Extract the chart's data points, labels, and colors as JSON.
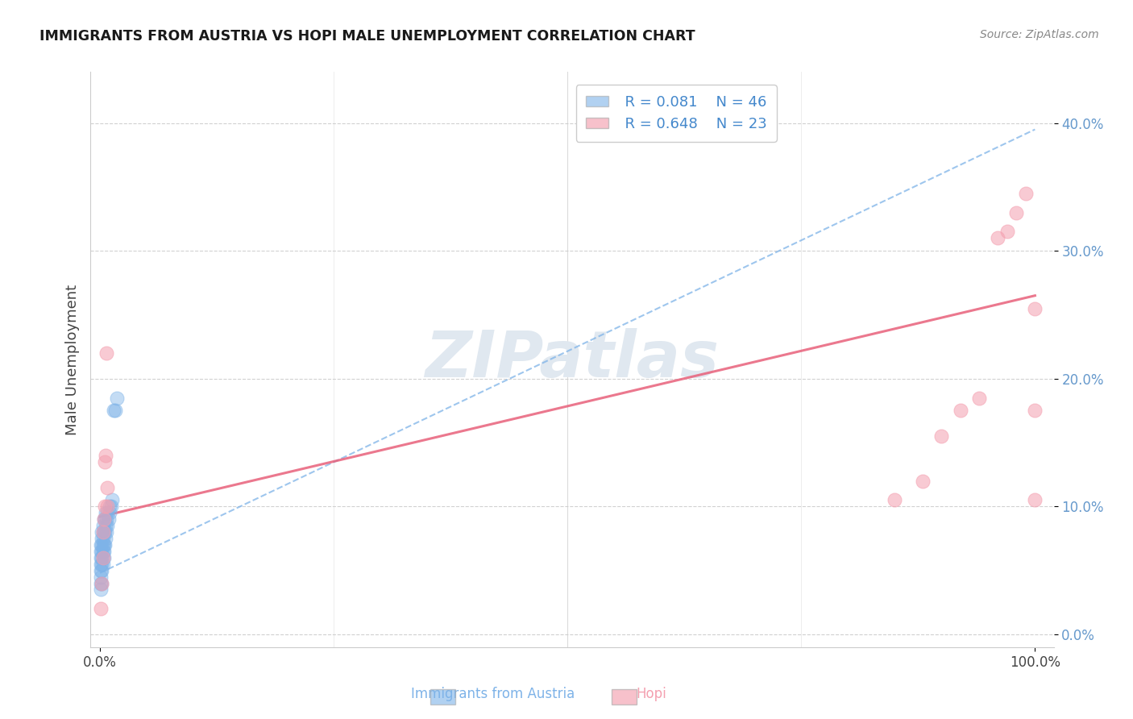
{
  "title": "IMMIGRANTS FROM AUSTRIA VS HOPI MALE UNEMPLOYMENT CORRELATION CHART",
  "source_text": "Source: ZipAtlas.com",
  "ylabel": "Male Unemployment",
  "legend_labels": [
    "Immigrants from Austria",
    "Hopi"
  ],
  "r_austria": 0.081,
  "n_austria": 46,
  "r_hopi": 0.648,
  "n_hopi": 23,
  "xlim": [
    -0.01,
    1.02
  ],
  "ylim": [
    -0.01,
    0.44
  ],
  "xtick_positions": [
    0.0,
    1.0
  ],
  "xtick_labels": [
    "0.0%",
    "100.0%"
  ],
  "ytick_positions": [
    0.0,
    0.1,
    0.2,
    0.3,
    0.4
  ],
  "ytick_labels": [
    "0.0%",
    "10.0%",
    "20.0%",
    "30.0%",
    "40.0%"
  ],
  "color_austria": "#7EB3E8",
  "color_hopi": "#F4A0B0",
  "trendline_austria_color": "#7EB3E8",
  "trendline_hopi_color": "#E8607A",
  "ytick_color": "#6699CC",
  "background_color": "#FFFFFF",
  "watermark": "ZIPatlas",
  "trendline_austria": [
    0.048,
    0.395
  ],
  "trendline_hopi": [
    0.092,
    0.265
  ],
  "austria_x": [
    0.001,
    0.001,
    0.001,
    0.001,
    0.001,
    0.001,
    0.001,
    0.001,
    0.002,
    0.002,
    0.002,
    0.002,
    0.002,
    0.002,
    0.002,
    0.002,
    0.003,
    0.003,
    0.003,
    0.003,
    0.003,
    0.003,
    0.003,
    0.004,
    0.004,
    0.004,
    0.004,
    0.004,
    0.005,
    0.005,
    0.005,
    0.006,
    0.006,
    0.006,
    0.007,
    0.007,
    0.008,
    0.008,
    0.009,
    0.01,
    0.01,
    0.012,
    0.013,
    0.015,
    0.016,
    0.018
  ],
  "austria_y": [
    0.035,
    0.04,
    0.045,
    0.05,
    0.055,
    0.06,
    0.065,
    0.07,
    0.04,
    0.05,
    0.055,
    0.06,
    0.065,
    0.07,
    0.075,
    0.08,
    0.055,
    0.06,
    0.065,
    0.07,
    0.075,
    0.08,
    0.085,
    0.06,
    0.065,
    0.07,
    0.08,
    0.09,
    0.07,
    0.08,
    0.09,
    0.075,
    0.085,
    0.095,
    0.08,
    0.09,
    0.085,
    0.095,
    0.09,
    0.095,
    0.1,
    0.1,
    0.105,
    0.175,
    0.175,
    0.185
  ],
  "hopi_x": [
    0.001,
    0.002,
    0.003,
    0.003,
    0.004,
    0.005,
    0.005,
    0.006,
    0.007,
    0.008,
    0.008,
    0.85,
    0.88,
    0.9,
    0.92,
    0.94,
    0.96,
    0.97,
    0.98,
    0.99,
    1.0,
    1.0,
    1.0
  ],
  "hopi_y": [
    0.02,
    0.04,
    0.06,
    0.08,
    0.09,
    0.1,
    0.135,
    0.14,
    0.22,
    0.1,
    0.115,
    0.105,
    0.12,
    0.155,
    0.175,
    0.185,
    0.31,
    0.315,
    0.33,
    0.345,
    0.255,
    0.175,
    0.105
  ]
}
